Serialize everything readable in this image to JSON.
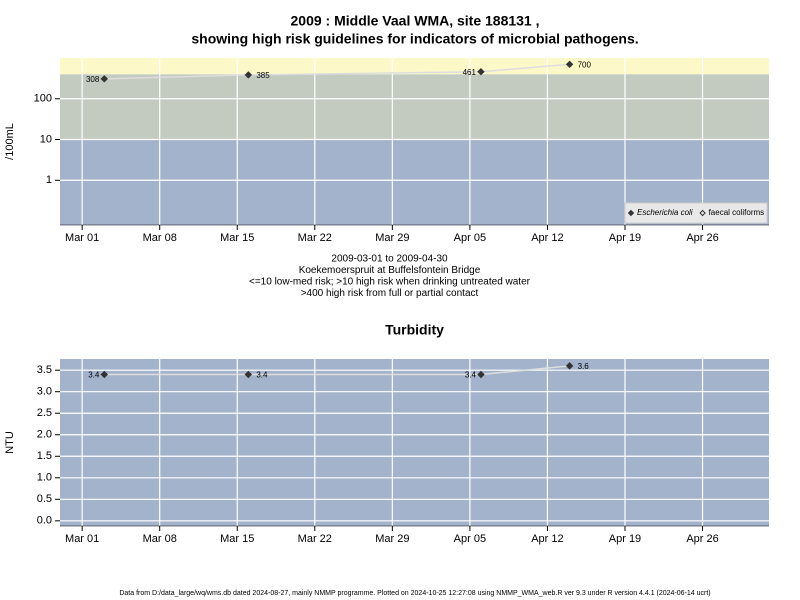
{
  "title": [
    "2009 : Middle Vaal WMA, site 188131 ,",
    "showing high risk guidelines for indicators of microbial pathogens."
  ],
  "footer": "Data from D:/data_large/wq/wms.db dated 2024-08-27, mainly NMMP programme. Plotted on 2024-10-25 12:27:08 using NMMP_WMA_web.R ver 9.3 under R version 4.4.1 (2024-06-14 ucrt)",
  "chart_data": [
    {
      "type": "line",
      "ylabel": "/100mL",
      "notes": [
        "2009-03-01 to 2009-04-30",
        "Koekemoerspruit at Buffelsfontein Bridge",
        "<=10 low-med risk; >10 high risk when drinking untreated water",
        ">400 high risk from full or partial contact"
      ],
      "x": [
        "2009-03-03",
        "2009-03-16",
        "2009-04-06",
        "2009-04-14"
      ],
      "series": [
        {
          "name": "Escherichia coli",
          "color": "#333333",
          "filled": true,
          "values": [
            308,
            385,
            461,
            700
          ]
        },
        {
          "name": "faecal coliforms",
          "color": "#333333",
          "filled": false,
          "values": [
            null,
            null,
            null,
            null
          ]
        }
      ],
      "line_color": "#dddddd",
      "xlim": [
        "2009-02-27",
        "2009-05-02"
      ],
      "xticks": [
        {
          "value": "2009-03-01",
          "label": "Mar 01"
        },
        {
          "value": "2009-03-08",
          "label": "Mar 08"
        },
        {
          "value": "2009-03-15",
          "label": "Mar 15"
        },
        {
          "value": "2009-03-22",
          "label": "Mar 22"
        },
        {
          "value": "2009-03-29",
          "label": "Mar 29"
        },
        {
          "value": "2009-04-05",
          "label": "Apr 05"
        },
        {
          "value": "2009-04-12",
          "label": "Apr 12"
        },
        {
          "value": "2009-04-19",
          "label": "Apr 19"
        },
        {
          "value": "2009-04-26",
          "label": "Apr 26"
        }
      ],
      "ylim": [
        0.08,
        1000
      ],
      "yticks": [
        1,
        10,
        100
      ],
      "log_y": true,
      "grid": true,
      "bands": [
        {
          "to": 10,
          "color": "#a3b3cb"
        },
        {
          "to": 400,
          "color": "#c3cbc1"
        },
        {
          "color": "#fdf8c8"
        }
      ],
      "legend": "bottom right"
    },
    {
      "type": "line",
      "title": "Turbidity",
      "ylabel": "NTU",
      "x": [
        "2009-03-03",
        "2009-03-16",
        "2009-04-06",
        "2009-04-14"
      ],
      "series": [
        {
          "name": "Turbidity",
          "color": "#333333",
          "filled": true,
          "values": [
            3.4,
            3.4,
            3.4,
            3.6
          ]
        }
      ],
      "line_color": "#dddddd",
      "xlim": [
        "2009-02-27",
        "2009-05-02"
      ],
      "xticks": [
        {
          "value": "2009-03-01",
          "label": "Mar 01"
        },
        {
          "value": "2009-03-08",
          "label": "Mar 08"
        },
        {
          "value": "2009-03-15",
          "label": "Mar 15"
        },
        {
          "value": "2009-03-22",
          "label": "Mar 22"
        },
        {
          "value": "2009-03-29",
          "label": "Mar 29"
        },
        {
          "value": "2009-04-05",
          "label": "Apr 05"
        },
        {
          "value": "2009-04-12",
          "label": "Apr 12"
        },
        {
          "value": "2009-04-19",
          "label": "Apr 19"
        },
        {
          "value": "2009-04-26",
          "label": "Apr 26"
        }
      ],
      "ylim": [
        -0.12,
        3.76
      ],
      "yticks": [
        {
          "value": 0,
          "label": "0.0"
        },
        0.5,
        {
          "value": 1,
          "label": "1.0"
        },
        1.5,
        {
          "value": 2,
          "label": "2.0"
        },
        2.5,
        {
          "value": 3,
          "label": "3.0"
        },
        3.5
      ],
      "log_y": false,
      "grid": true,
      "bands": [
        {
          "color": "#a3b3cb"
        }
      ]
    }
  ]
}
